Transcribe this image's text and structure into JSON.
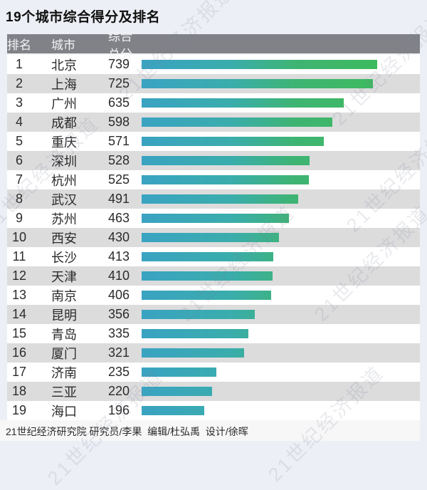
{
  "title": "19个城市综合得分及排名",
  "watermark": "21世纪经济报道",
  "footer": "21世纪经济研究院 研究员/李果  编辑/杜弘禹  设计/徐晖",
  "colors": {
    "page_bg": "#EDEFF6",
    "title_text": "#101010",
    "header_bg": "#818287",
    "header_text": "#F2F3F5",
    "row_bg": "#FFFFFF",
    "row_alt": "#DCDCDD",
    "text": "#2B2B2B",
    "bar_start": "#3AA3C2",
    "bar_mid": "#3AADAC",
    "bar_mid2": "#3EB473",
    "bar_end": "#3DBA5E",
    "footer_band": "#F7F7F8",
    "watermark": "#7A8095"
  },
  "chart_data": {
    "type": "bar",
    "orientation": "horizontal",
    "title": "19个城市综合得分及排名",
    "columns": [
      "排名",
      "城市",
      "综合总分"
    ],
    "ranks": [
      1,
      2,
      3,
      4,
      5,
      6,
      7,
      8,
      9,
      10,
      11,
      12,
      13,
      14,
      15,
      16,
      17,
      18,
      19
    ],
    "categories": [
      "北京",
      "上海",
      "广州",
      "成都",
      "重庆",
      "深圳",
      "杭州",
      "武汉",
      "苏州",
      "西安",
      "长沙",
      "天津",
      "南京",
      "昆明",
      "青岛",
      "厦门",
      "济南",
      "三亚",
      "海口"
    ],
    "values": [
      739,
      725,
      635,
      598,
      571,
      528,
      525,
      491,
      463,
      430,
      413,
      410,
      406,
      356,
      335,
      321,
      235,
      220,
      196
    ],
    "xlim": [
      0,
      739
    ],
    "grid": false,
    "legend": false,
    "bar_color_gradient": [
      "#3AA3C2",
      "#3DBA5E"
    ]
  }
}
